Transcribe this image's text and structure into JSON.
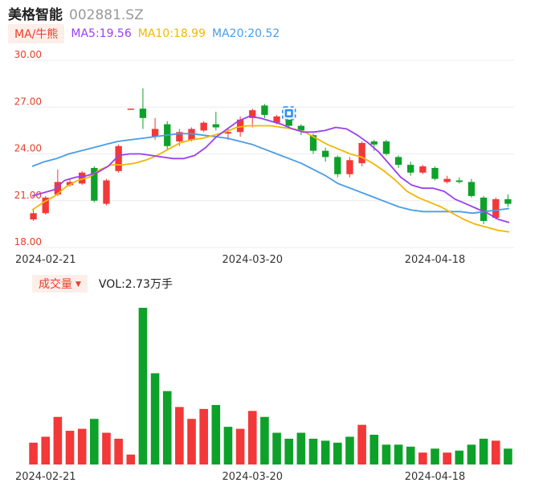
{
  "header": {
    "name": "美格智能",
    "code": "002881.SZ"
  },
  "ma": {
    "tag": "MA/牛熊",
    "ma5": "MA5:19.56",
    "ma10": "MA10:18.99",
    "ma20": "MA20:20.52"
  },
  "volume": {
    "tag": "成交量",
    "value": "VOL:2.73万手"
  },
  "colors": {
    "up": "#f23838",
    "down": "#0ea12a",
    "ma5": "#9b3ff0",
    "ma10": "#f2b705",
    "ma20": "#4a9ce8",
    "tag_text": "#e8402a"
  },
  "chart_data": [
    {
      "type": "candlestick",
      "y_ticks": [
        "30.00",
        "27.00",
        "24.00",
        "21.00",
        "18.00"
      ],
      "ylim": [
        18,
        30
      ],
      "x_labels": [
        {
          "label": "2024-02-21",
          "index": 1
        },
        {
          "label": "2024-03-20",
          "index": 18
        },
        {
          "label": "2024-04-18",
          "index": 33
        }
      ],
      "grid": true,
      "candles": [
        {
          "o": 19.8,
          "c": 20.2,
          "h": 20.4,
          "l": 19.7
        },
        {
          "o": 20.2,
          "c": 21.2,
          "h": 21.3,
          "l": 20.1
        },
        {
          "o": 21.4,
          "c": 22.2,
          "h": 23.0,
          "l": 21.3
        },
        {
          "o": 22.0,
          "c": 22.2,
          "h": 22.4,
          "l": 21.9
        },
        {
          "o": 22.1,
          "c": 22.8,
          "h": 22.9,
          "l": 22.0
        },
        {
          "o": 23.1,
          "c": 21.0,
          "h": 23.2,
          "l": 20.9
        },
        {
          "o": 20.8,
          "c": 22.3,
          "h": 22.4,
          "l": 20.7
        },
        {
          "o": 22.9,
          "c": 24.5,
          "h": 24.6,
          "l": 22.8
        },
        {
          "o": 26.9,
          "c": 26.9,
          "h": 26.9,
          "l": 26.9
        },
        {
          "o": 26.9,
          "c": 26.3,
          "h": 28.2,
          "l": 25.6
        },
        {
          "o": 25.1,
          "c": 25.6,
          "h": 26.3,
          "l": 24.9
        },
        {
          "o": 25.9,
          "c": 24.5,
          "h": 26.1,
          "l": 24.3
        },
        {
          "o": 24.8,
          "c": 25.4,
          "h": 25.6,
          "l": 24.5
        },
        {
          "o": 24.9,
          "c": 25.6,
          "h": 25.7,
          "l": 24.8
        },
        {
          "o": 25.5,
          "c": 26.0,
          "h": 26.1,
          "l": 25.4
        },
        {
          "o": 25.9,
          "c": 25.7,
          "h": 26.7,
          "l": 25.5
        },
        {
          "o": 25.3,
          "c": 25.4,
          "h": 25.6,
          "l": 24.9
        },
        {
          "o": 25.4,
          "c": 26.2,
          "h": 26.4,
          "l": 25.1
        },
        {
          "o": 26.3,
          "c": 26.8,
          "h": 26.9,
          "l": 25.7
        },
        {
          "o": 27.1,
          "c": 26.5,
          "h": 27.2,
          "l": 26.3
        },
        {
          "o": 26.0,
          "c": 26.4,
          "h": 26.5,
          "l": 25.9
        },
        {
          "o": 26.4,
          "c": 25.8,
          "h": 26.5,
          "l": 25.6
        },
        {
          "o": 25.8,
          "c": 25.5,
          "h": 25.9,
          "l": 25.2
        },
        {
          "o": 25.2,
          "c": 24.2,
          "h": 25.3,
          "l": 24.0
        },
        {
          "o": 24.2,
          "c": 23.8,
          "h": 24.4,
          "l": 23.5
        },
        {
          "o": 23.8,
          "c": 22.7,
          "h": 23.9,
          "l": 22.5
        },
        {
          "o": 22.7,
          "c": 23.6,
          "h": 23.8,
          "l": 22.5
        },
        {
          "o": 23.4,
          "c": 24.7,
          "h": 24.8,
          "l": 23.2
        },
        {
          "o": 24.8,
          "c": 24.6,
          "h": 24.9,
          "l": 24.2
        },
        {
          "o": 24.8,
          "c": 24.0,
          "h": 24.9,
          "l": 23.9
        },
        {
          "o": 23.8,
          "c": 23.3,
          "h": 23.9,
          "l": 23.1
        },
        {
          "o": 23.3,
          "c": 22.8,
          "h": 23.5,
          "l": 22.6
        },
        {
          "o": 22.8,
          "c": 23.2,
          "h": 23.3,
          "l": 22.7
        },
        {
          "o": 23.1,
          "c": 22.4,
          "h": 23.2,
          "l": 22.3
        },
        {
          "o": 22.2,
          "c": 22.4,
          "h": 22.6,
          "l": 22.1
        },
        {
          "o": 22.3,
          "c": 22.2,
          "h": 22.5,
          "l": 22.1
        },
        {
          "o": 22.2,
          "c": 21.3,
          "h": 22.4,
          "l": 21.2
        },
        {
          "o": 21.2,
          "c": 19.7,
          "h": 21.3,
          "l": 19.5
        },
        {
          "o": 19.9,
          "c": 21.1,
          "h": 21.2,
          "l": 19.8
        },
        {
          "o": 21.1,
          "c": 20.8,
          "h": 21.4,
          "l": 20.6
        }
      ],
      "ma5": [
        21.3,
        21.5,
        21.7,
        22.3,
        22.5,
        22.6,
        22.8,
        23.2,
        23.9,
        24.0,
        24.0,
        23.9,
        23.8,
        23.7,
        23.7,
        23.9,
        24.4,
        25.1,
        25.6,
        26.1,
        26.4,
        26.3,
        26.1,
        25.9,
        25.6,
        25.4,
        25.4,
        25.5,
        25.7,
        25.6,
        25.2,
        24.7,
        24.1,
        23.3,
        22.5,
        22.0,
        21.8,
        21.8,
        21.6,
        21.1,
        20.8,
        20.5,
        20.2,
        19.8,
        19.6
      ],
      "ma10": [
        20.4,
        20.9,
        21.3,
        21.9,
        22.3,
        22.5,
        23.0,
        23.3,
        23.3,
        23.4,
        23.6,
        23.9,
        24.3,
        24.7,
        24.9,
        25.0,
        25.2,
        25.4,
        25.7,
        25.8,
        25.8,
        25.8,
        25.7,
        25.6,
        25.4,
        25.0,
        24.6,
        24.3,
        24.0,
        23.8,
        23.4,
        22.9,
        22.3,
        21.6,
        21.2,
        20.9,
        20.6,
        20.2,
        19.8,
        19.5,
        19.3,
        19.1,
        19.0
      ],
      "ma20": [
        23.2,
        23.5,
        23.7,
        24.0,
        24.2,
        24.4,
        24.6,
        24.8,
        24.9,
        25.0,
        25.1,
        25.2,
        25.3,
        25.3,
        25.2,
        25.1,
        25.0,
        24.8,
        24.6,
        24.3,
        24.0,
        23.7,
        23.4,
        23.0,
        22.6,
        22.1,
        21.8,
        21.5,
        21.2,
        20.9,
        20.6,
        20.4,
        20.3,
        20.3,
        20.3,
        20.3,
        20.2,
        20.3,
        20.4,
        20.5
      ],
      "notes": "MA lines are estimated across the plotted span"
    },
    {
      "type": "bar",
      "name": "volume",
      "values": [
        1.1,
        1.4,
        2.4,
        1.7,
        1.8,
        2.3,
        1.6,
        1.3,
        0.5,
        7.9,
        4.6,
        3.7,
        2.9,
        2.3,
        2.8,
        3.0,
        1.9,
        1.8,
        2.7,
        2.4,
        1.6,
        1.3,
        1.6,
        1.3,
        1.2,
        1.1,
        1.4,
        2.0,
        1.5,
        1.0,
        1.0,
        0.9,
        0.6,
        0.8,
        0.6,
        0.7,
        1.0,
        1.3,
        1.2,
        0.8
      ],
      "directions": [
        "up",
        "up",
        "up",
        "up",
        "up",
        "down",
        "up",
        "up",
        "up",
        "down",
        "down",
        "down",
        "up",
        "up",
        "up",
        "down",
        "down",
        "up",
        "up",
        "down",
        "down",
        "down",
        "down",
        "down",
        "down",
        "down",
        "down",
        "up",
        "down",
        "down",
        "down",
        "down",
        "up",
        "down",
        "up",
        "down",
        "down",
        "down",
        "up",
        "down"
      ]
    }
  ]
}
